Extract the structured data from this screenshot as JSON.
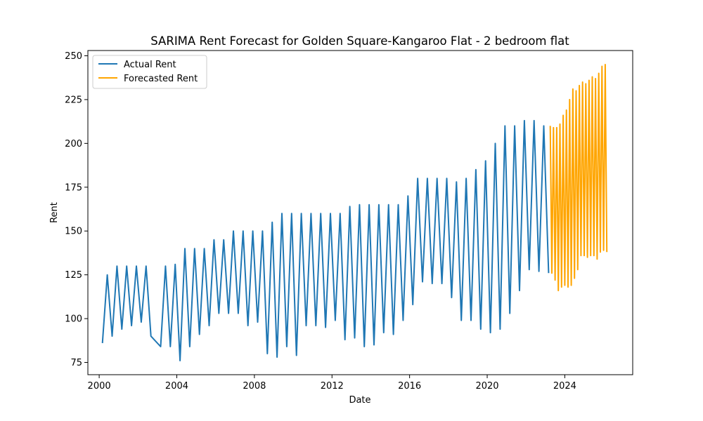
{
  "chart_data": {
    "type": "line",
    "title": "SARIMA Rent Forecast for Golden Square-Kangaroo Flat - 2 bedroom flat",
    "xlabel": "Date",
    "ylabel": "Rent",
    "xlim": [
      "1999-06-01",
      "2027-07-01"
    ],
    "ylim": [
      68,
      253
    ],
    "x_ticks": [
      "2000",
      "2004",
      "2008",
      "2012",
      "2016",
      "2020",
      "2024"
    ],
    "y_ticks": [
      75,
      100,
      125,
      150,
      175,
      200,
      225,
      250
    ],
    "grid": false,
    "legend_position": "top-left",
    "colors": {
      "actual": "#1f77b4",
      "forecast": "#ffa500"
    },
    "series": [
      {
        "name": "Actual Rent",
        "x": [
          "2000-03-01",
          "2000-06-01",
          "2000-09-01",
          "2000-12-01",
          "2001-03-01",
          "2001-06-01",
          "2001-09-01",
          "2001-12-01",
          "2002-03-01",
          "2002-06-01",
          "2002-09-01",
          "2003-03-01",
          "2003-06-01",
          "2003-09-01",
          "2003-12-01",
          "2004-03-01",
          "2004-06-01",
          "2004-09-01",
          "2004-12-01",
          "2005-03-01",
          "2005-06-01",
          "2005-09-01",
          "2005-12-01",
          "2006-03-01",
          "2006-06-01",
          "2006-09-01",
          "2006-12-01",
          "2007-03-01",
          "2007-06-01",
          "2007-09-01",
          "2007-12-01",
          "2008-03-01",
          "2008-06-01",
          "2008-09-01",
          "2008-12-01",
          "2009-03-01",
          "2009-06-01",
          "2009-09-01",
          "2009-12-01",
          "2010-03-01",
          "2010-06-01",
          "2010-09-01",
          "2010-12-01",
          "2011-03-01",
          "2011-06-01",
          "2011-09-01",
          "2011-12-01",
          "2012-03-01",
          "2012-06-01",
          "2012-09-01",
          "2012-12-01",
          "2013-03-01",
          "2013-06-01",
          "2013-09-01",
          "2013-12-01",
          "2014-03-01",
          "2014-06-01",
          "2014-09-01",
          "2014-12-01",
          "2015-03-01",
          "2015-06-01",
          "2015-09-01",
          "2015-12-01",
          "2016-03-01",
          "2016-06-01",
          "2016-09-01",
          "2016-12-01",
          "2017-03-01",
          "2017-06-01",
          "2017-09-01",
          "2017-12-01",
          "2018-03-01",
          "2018-06-01",
          "2018-09-01",
          "2018-12-01",
          "2019-03-01",
          "2019-06-01",
          "2019-09-01",
          "2019-12-01",
          "2020-03-01",
          "2020-06-01",
          "2020-09-01",
          "2020-12-01",
          "2021-03-01",
          "2021-06-01",
          "2021-09-01",
          "2021-12-01",
          "2022-03-01",
          "2022-06-01",
          "2022-09-01",
          "2022-12-01",
          "2023-03-01"
        ],
        "values": [
          86,
          125,
          90,
          130,
          94,
          130,
          96,
          130,
          98,
          130,
          90,
          84,
          130,
          84,
          131,
          76,
          140,
          84,
          140,
          91,
          140,
          96,
          145,
          103,
          145,
          103,
          150,
          103,
          150,
          96,
          150,
          98,
          150,
          80,
          155,
          78,
          160,
          84,
          160,
          79,
          160,
          96,
          160,
          96,
          160,
          95,
          160,
          99,
          160,
          88,
          164,
          89,
          165,
          84,
          165,
          85,
          165,
          92,
          165,
          91,
          165,
          99,
          170,
          108,
          180,
          121,
          180,
          120,
          180,
          120,
          180,
          112,
          178,
          99,
          180,
          99,
          185,
          94,
          190,
          92,
          200,
          94,
          210,
          103,
          210,
          116,
          213,
          128,
          213,
          127,
          210,
          126
        ]
      },
      {
        "name": "Forecasted Rent",
        "x": [
          "2023-04-01",
          "2023-05-01",
          "2023-06-01",
          "2023-07-01",
          "2023-08-01",
          "2023-09-01",
          "2023-10-01",
          "2023-11-01",
          "2023-12-01",
          "2024-01-01",
          "2024-02-01",
          "2024-03-01",
          "2024-04-01",
          "2024-05-01",
          "2024-06-01",
          "2024-07-01",
          "2024-08-01",
          "2024-09-01",
          "2024-10-01",
          "2024-11-01",
          "2024-12-01",
          "2025-01-01",
          "2025-02-01",
          "2025-03-01",
          "2025-04-01",
          "2025-05-01",
          "2025-06-01",
          "2025-07-01",
          "2025-08-01",
          "2025-09-01",
          "2025-10-01",
          "2025-11-01",
          "2025-12-01",
          "2026-01-01",
          "2026-02-01",
          "2026-03-01"
        ],
        "values": [
          210,
          126,
          209,
          122,
          209,
          116,
          211,
          118,
          216,
          119,
          219,
          118,
          225,
          119,
          231,
          123,
          230,
          128,
          233,
          136,
          235,
          136,
          234,
          135,
          236,
          136,
          238,
          136,
          237,
          134,
          240,
          138,
          244,
          139,
          245,
          138
        ]
      }
    ]
  }
}
